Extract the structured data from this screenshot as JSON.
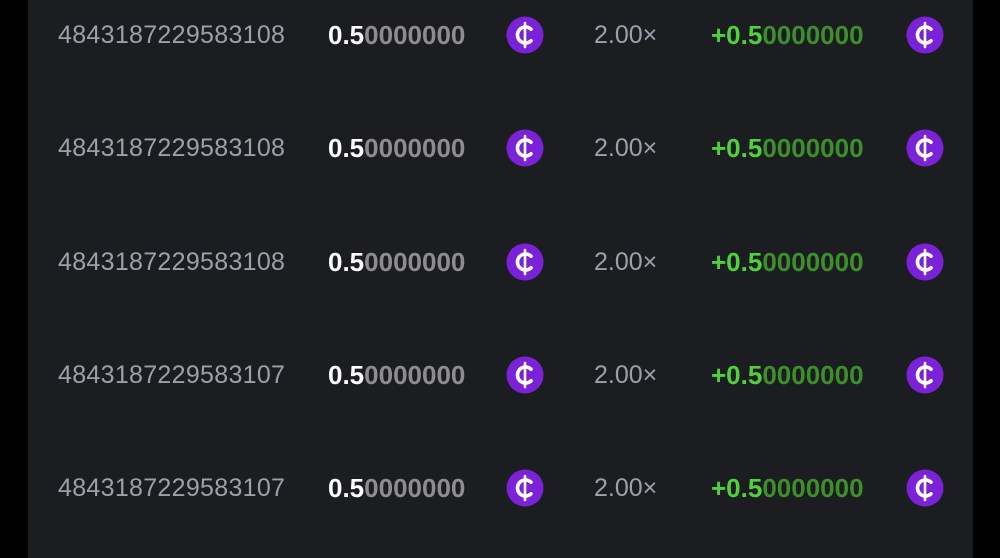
{
  "table": {
    "rows": [
      {
        "id": "4843187229583108",
        "amount_lead": "0.5",
        "amount_tail": "0000000",
        "multiplier": "2.00×",
        "payout_lead": "+0.5",
        "payout_tail": "0000000"
      },
      {
        "id": "4843187229583108",
        "amount_lead": "0.5",
        "amount_tail": "0000000",
        "multiplier": "2.00×",
        "payout_lead": "+0.5",
        "payout_tail": "0000000"
      },
      {
        "id": "4843187229583108",
        "amount_lead": "0.5",
        "amount_tail": "0000000",
        "multiplier": "2.00×",
        "payout_lead": "+0.5",
        "payout_tail": "0000000"
      },
      {
        "id": "4843187229583107",
        "amount_lead": "0.5",
        "amount_tail": "0000000",
        "multiplier": "2.00×",
        "payout_lead": "+0.5",
        "payout_tail": "0000000"
      },
      {
        "id": "4843187229583107",
        "amount_lead": "0.5",
        "amount_tail": "0000000",
        "multiplier": "2.00×",
        "payout_lead": "+0.5",
        "payout_tail": "0000000"
      }
    ]
  }
}
